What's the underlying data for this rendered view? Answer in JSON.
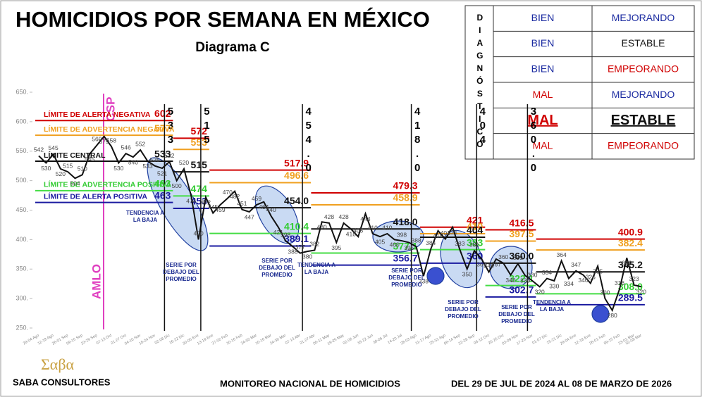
{
  "chart_data": {
    "type": "line",
    "title": "HOMICIDIOS POR SEMANA EN MÉXICO",
    "subtitle": "Diagrama C",
    "categories": [
      "29-04 Ago",
      null,
      "12-18 Ago",
      null,
      "26-01 Sep",
      null,
      "09-15 Sep",
      null,
      "23-29 Sep",
      null,
      "07-13 Oct",
      null,
      "21-27 Oct",
      null,
      "04-10 Nov",
      null,
      "18-24 Nov",
      null,
      "02-08 Dic",
      null,
      "16-22 Dic",
      null,
      "30-05 Ene",
      null,
      "13-19 Ene",
      null,
      "27-02 Feb",
      null,
      "10-16 Feb",
      null,
      "24-02 Mar",
      null,
      "10-16 Mar",
      null,
      "24-30 Mar",
      null,
      "07-13 Abr",
      null,
      "21-27 Abr",
      null,
      "05-11 May",
      null,
      "19-25 May",
      null,
      "02-08 Jun",
      null,
      "16-22 Jun",
      null,
      "30-06 Jul",
      null,
      "14-20 Jul",
      null,
      "28-03 Ago",
      null,
      "11-17 Ago",
      null,
      "25-31 Ago",
      null,
      "08-14 Sep",
      null,
      "22-28 Sep",
      null,
      "06-12 Oct",
      null,
      "20-26 Oct",
      null,
      "03-09 Nov",
      null,
      "17-23 Nov",
      null,
      "01-07 Dic",
      null,
      "15-21 Dic",
      null,
      "29-04 Ene",
      null,
      "12-18 Ene",
      null,
      "26-01 Feb",
      null,
      "09-15 Feb",
      null,
      "23-01 Mar",
      "02-08 Mar"
    ],
    "values": [
      542,
      530,
      545,
      520,
      515,
      504,
      510,
      545,
      560,
      575,
      558,
      530,
      546,
      540,
      552,
      533,
      525,
      521,
      532,
      500,
      520,
      474,
      400,
      472,
      445,
      459,
      470,
      482,
      451,
      447,
      459,
      464,
      440,
      421,
      398,
      388,
      377,
      380,
      382,
      430,
      428,
      395,
      428,
      418,
      405,
      444,
      410,
      405,
      410,
      400,
      398,
      395,
      388,
      338,
      384,
      415,
      401,
      421,
      383,
      350,
      381,
      367,
      345,
      367,
      360,
      340,
      359,
      339,
      330,
      320,
      334,
      330,
      364,
      334,
      347,
      340,
      326,
      355,
      300,
      280,
      316,
      369,
      323,
      320
    ],
    "color": "#111111",
    "ylim": [
      250,
      650
    ],
    "yticks": [
      {
        "value": 250,
        "label": "250."
      },
      {
        "value": 300,
        "label": "300."
      },
      {
        "value": 350,
        "label": "350."
      },
      {
        "value": 400,
        "label": "400."
      },
      {
        "value": 450,
        "label": "450."
      },
      {
        "value": 500,
        "label": "500."
      },
      {
        "value": 550,
        "label": "550."
      },
      {
        "value": 600,
        "label": "600."
      },
      {
        "value": 650,
        "label": "650."
      }
    ],
    "limit_names": [
      "LÍMITE DE ALERTA NEGATIVA",
      "LÍMITE DE ADVERTENCIA NEGATIVA",
      "LÍMITE CENTRAL",
      "LÍMITE DE ADVERTENCIA POSITIVA",
      "LÍMITE DE ALERTA POSITIVA"
    ],
    "limit_colors": [
      "#d00000",
      "#f0a020",
      "#111111",
      "#44dd44",
      "#1a1aa0"
    ],
    "segments": [
      {
        "start": 0,
        "end": 18,
        "limits": [
          602,
          577,
          533,
          483,
          463
        ]
      },
      {
        "start": 19,
        "end": 23,
        "limits": [
          572,
          553,
          515,
          474,
          453
        ]
      },
      {
        "start": 24,
        "end": 37,
        "limits": [
          {
            "value": 517.9,
            "label": "517.9"
          },
          {
            "value": 496.6,
            "label": "496.6"
          },
          {
            "value": 454,
            "label": "454.0"
          },
          {
            "value": 410.4,
            "label": "410.4"
          },
          {
            "value": 389.1,
            "label": "389.1"
          }
        ]
      },
      {
        "start": 38,
        "end": 52,
        "limits": [
          {
            "value": 479.3,
            "label": "479.3"
          },
          {
            "value": 458.9,
            "label": "458.9"
          },
          {
            "value": 418,
            "label": "418.0"
          },
          {
            "value": 377.1,
            "label": "377.1"
          },
          {
            "value": 356.7,
            "label": "356.7"
          }
        ]
      },
      {
        "start": 53,
        "end": 61,
        "limits": [
          421,
          410,
          404,
          383,
          360
        ]
      },
      {
        "start": 62,
        "end": 68,
        "limits": [
          {
            "value": 416.5,
            "label": "416.5"
          },
          {
            "value": 397.5,
            "label": "397.5"
          },
          {
            "value": 360,
            "label": "360.0"
          },
          {
            "value": 322.1,
            "label": "322.1"
          },
          {
            "value": 302.7,
            "label": "302.7"
          }
        ]
      },
      {
        "start": 69,
        "end": 83,
        "limits": [
          {
            "value": 400.9,
            "label": "400.9"
          },
          {
            "value": 382.4,
            "label": "382.4"
          },
          {
            "value": 345.2,
            "label": "345.2"
          },
          {
            "value": 308,
            "label": "308.0"
          },
          {
            "value": 289.5,
            "label": "289.5"
          }
        ]
      }
    ],
    "periods": [
      "AMLO",
      "CSP"
    ],
    "annotations": [
      "TENDENCIA A LA BAJA",
      "SERIE POR DEBAJO DEL PROMEDIO",
      "SERIE POR DEBAJO DEL PROMEDIO",
      "TENDENCIA A LA BAJA",
      "SERIE POR DEBAJO DEL PROMEDIO",
      "SERIE POR DEBAJO DEL PROMEDIO",
      "SERIE POR DEBAJO DEL PROMEDIO",
      "TENDENCIA A LA BAJA"
    ]
  },
  "diagnostico": {
    "header": "DIAGNÓSTICO",
    "rows": [
      {
        "cells": [
          "BIEN",
          "MEJORANDO"
        ],
        "colors": [
          "#1a2aa0",
          "#1a2aa0"
        ]
      },
      {
        "cells": [
          "BIEN",
          "ESTABLE"
        ],
        "colors": [
          "#1a2aa0",
          "#111111"
        ]
      },
      {
        "cells": [
          "BIEN",
          "EMPEORANDO"
        ],
        "colors": [
          "#1a2aa0",
          "#d00000"
        ]
      },
      {
        "cells": [
          "MAL",
          "MEJORANDO"
        ],
        "colors": [
          "#d00000",
          "#1a2aa0"
        ]
      },
      {
        "cells": [
          "MAL",
          "ESTABLE"
        ],
        "colors": [
          "#d00000",
          "#111111"
        ],
        "highlight": true
      },
      {
        "cells": [
          "MAL",
          "EMPEORANDO"
        ],
        "colors": [
          "#d00000",
          "#d00000"
        ]
      }
    ]
  },
  "footer": {
    "logo": "Σαβα",
    "company": "SABA CONSULTORES",
    "center": "MONITOREO NACIONAL DE HOMICIDIOS",
    "period": "DEL 29 DE JUL DE 2024 AL 08 DE MARZO DE 2026"
  }
}
